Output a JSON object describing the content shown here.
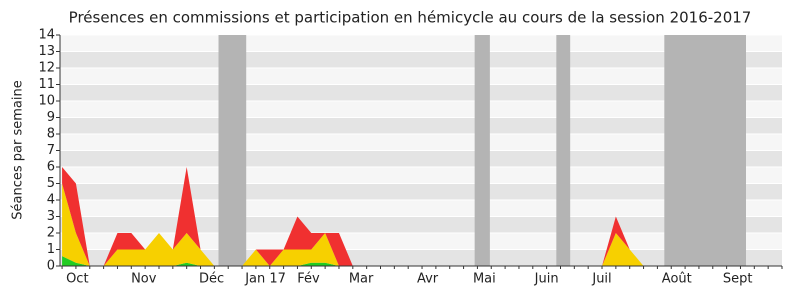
{
  "chart_data": {
    "type": "stacked_area",
    "title": "Présences en commissions et participation en hémicycle au cours de la session 2016-2017",
    "y_label": "Séances par semaine",
    "x": [
      0,
      1,
      2,
      3,
      4,
      5,
      6,
      7,
      8,
      9,
      10,
      11,
      12,
      13,
      14,
      15,
      16,
      17,
      18,
      19,
      20,
      21,
      22,
      23,
      24,
      25,
      26,
      27,
      28,
      29,
      30,
      31,
      32,
      33,
      34,
      35,
      36,
      37,
      38,
      39,
      40,
      41,
      42,
      43,
      44,
      45,
      46,
      47,
      48,
      49,
      50,
      51,
      52
    ],
    "series": [
      {
        "color": "#22cc22",
        "values": [
          0.6,
          0.2,
          0,
          0,
          0,
          0,
          0,
          0,
          0,
          0.2,
          0,
          0,
          0,
          0,
          0,
          0,
          0,
          0,
          0.2,
          0.2,
          0,
          0,
          0,
          0,
          0,
          0,
          0,
          0,
          0,
          0,
          0,
          0,
          0,
          0,
          0,
          0,
          0,
          0,
          0,
          0,
          0,
          0,
          0,
          0,
          0,
          0,
          0,
          0,
          0,
          0,
          0,
          0,
          0
        ]
      },
      {
        "color": "#f7d000",
        "values": [
          4.4,
          1.8,
          0,
          0,
          1,
          1,
          1,
          2,
          1,
          1.8,
          1,
          0,
          0,
          0,
          1,
          0,
          1,
          1,
          0.8,
          1.8,
          0,
          0,
          0,
          0,
          0,
          0,
          0,
          0,
          0,
          0,
          0,
          0,
          0,
          0,
          0,
          0,
          0,
          0,
          0,
          0,
          2,
          1,
          0,
          0,
          0,
          0,
          0,
          0,
          0,
          0,
          0,
          0,
          0
        ]
      },
      {
        "color": "#f03030",
        "values": [
          1,
          3,
          0,
          0,
          1,
          1,
          0,
          0,
          0,
          4,
          0,
          0,
          0,
          0,
          0,
          1,
          0,
          2,
          1,
          0,
          2,
          0,
          0,
          0,
          0,
          0,
          0,
          0,
          0,
          0,
          0,
          0,
          0,
          0,
          0,
          0,
          0,
          0,
          0,
          0,
          1,
          0,
          0,
          0,
          0,
          0,
          0,
          0,
          0,
          0,
          0,
          0,
          0
        ]
      }
    ],
    "shaded": [
      [
        11.3,
        13.3
      ],
      [
        29.8,
        30.9
      ],
      [
        35.7,
        36.7
      ],
      [
        43.5,
        49.4
      ]
    ],
    "shade_color": "#b4b4b4",
    "xlim": [
      -0.15,
      52
    ],
    "xticks": [
      {
        "value": 1.1,
        "label": "Oct"
      },
      {
        "value": 5.9,
        "label": "Nov"
      },
      {
        "value": 10.8,
        "label": "Déc"
      },
      {
        "value": 14.7,
        "label": "Jan 17"
      },
      {
        "value": 17.8,
        "label": "Fév"
      },
      {
        "value": 21.6,
        "label": "Mar"
      },
      {
        "value": 26.4,
        "label": "Avr"
      },
      {
        "value": 30.5,
        "label": "Mai"
      },
      {
        "value": 35.0,
        "label": "Juin"
      },
      {
        "value": 39.0,
        "label": "Juil"
      },
      {
        "value": 44.4,
        "label": "Août"
      },
      {
        "value": 48.8,
        "label": "Sept"
      }
    ],
    "ylim": [
      0,
      14
    ],
    "yticks": [
      0,
      1,
      2,
      3,
      4,
      5,
      6,
      7,
      8,
      9,
      10,
      11,
      12,
      13,
      14
    ]
  }
}
